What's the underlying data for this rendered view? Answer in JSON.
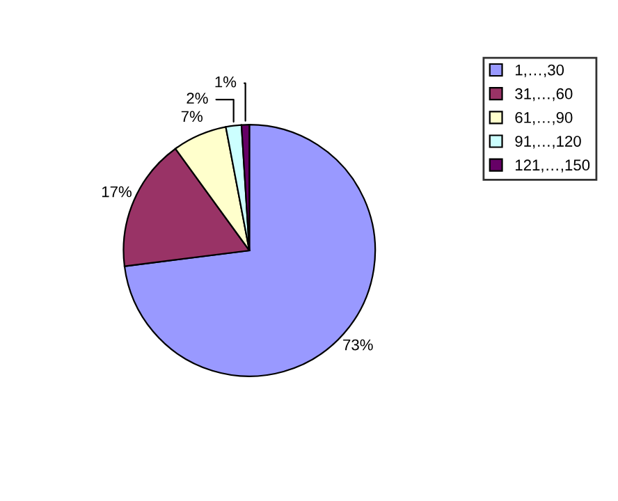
{
  "chart_data": {
    "type": "pie",
    "categories": [
      "1,…,30",
      "31,…,60",
      "61,…,90",
      "91,…,120",
      "121,…,150"
    ],
    "values": [
      73,
      17,
      7,
      2,
      1
    ],
    "colors": [
      "#9999ff",
      "#993366",
      "#ffffcc",
      "#ccffff",
      "#660066"
    ],
    "value_labels": [
      "73%",
      "17%",
      "7%",
      "2%",
      "1%"
    ],
    "legend": "right"
  }
}
